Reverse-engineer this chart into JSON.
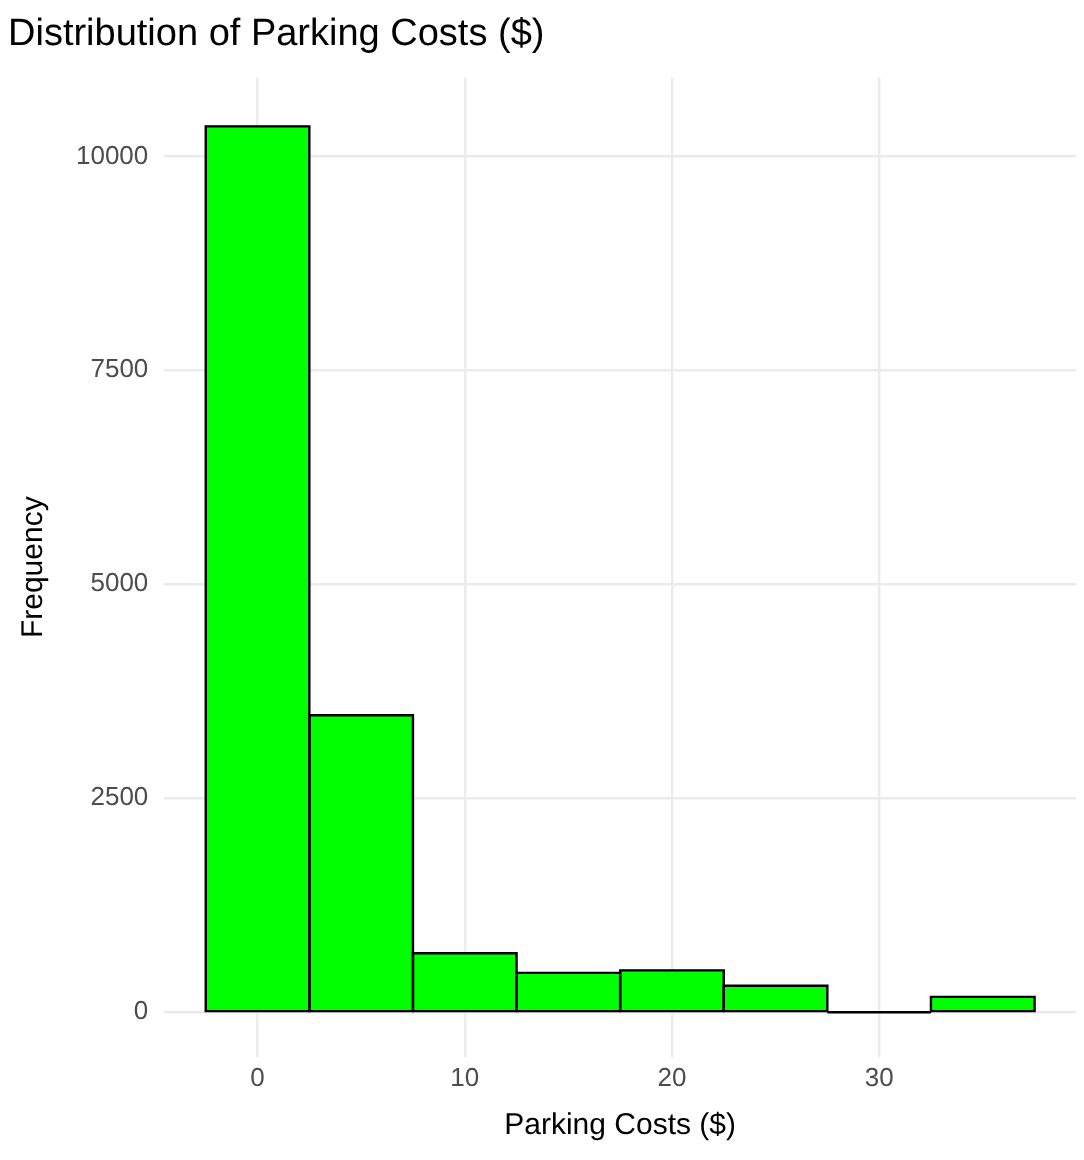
{
  "chart_data": {
    "type": "histogram",
    "title": "Distribution of Parking Costs ($)",
    "xlabel": "Parking Costs ($)",
    "ylabel": "Frequency",
    "bins": [
      -2.5,
      2.5,
      7.5,
      12.5,
      17.5,
      22.5,
      27.5,
      32.5,
      37.5
    ],
    "values": [
      10350,
      3470,
      690,
      460,
      490,
      310,
      0,
      180
    ],
    "color": "#00ff00",
    "xlim": [
      -4.5,
      39.5
    ],
    "xticks": [
      0,
      10,
      20,
      30
    ],
    "ylim": [
      -520,
      10920
    ],
    "yticks": [
      0,
      2500,
      5000,
      7500,
      10000
    ],
    "grid": true,
    "legend": false
  }
}
